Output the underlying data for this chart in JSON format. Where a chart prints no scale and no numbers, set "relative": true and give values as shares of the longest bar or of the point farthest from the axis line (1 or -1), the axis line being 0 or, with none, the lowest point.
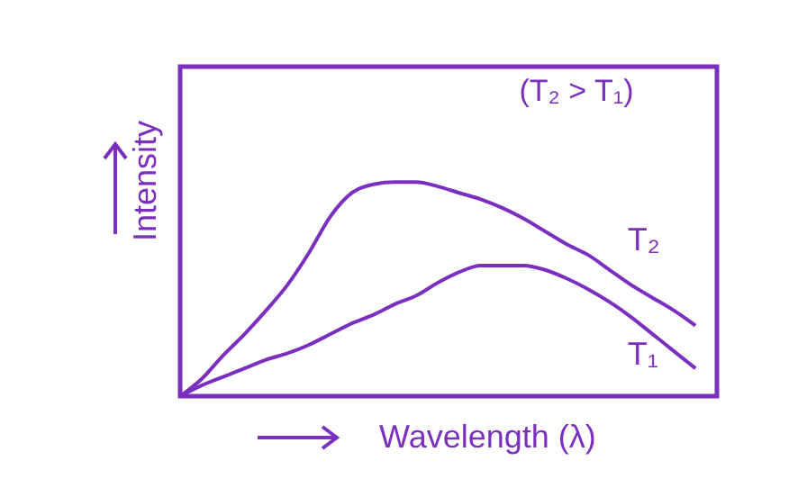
{
  "chart_data": {
    "type": "line",
    "xlabel": "Wavelength (λ)",
    "ylabel": "Intensity",
    "annotations": [
      "(T₂ > T₁)"
    ],
    "relative": true,
    "tick_labels": false,
    "categories": [
      null,
      null,
      null,
      null,
      null,
      null,
      null,
      null,
      null,
      null,
      null,
      null,
      null,
      null,
      null,
      null,
      null,
      null,
      null,
      null,
      null,
      null,
      null,
      null,
      null,
      null
    ],
    "series": [
      {
        "name": "T₂",
        "color": "#7b2fbf",
        "values": [
          0,
          0.08,
          0.19,
          0.29,
          0.4,
          0.52,
          0.67,
          0.84,
          0.95,
          0.99,
          1,
          1,
          0.98,
          0.95,
          0.92,
          0.88,
          0.83,
          0.77,
          0.71,
          0.66,
          0.59,
          0.52,
          0.46,
          0.4,
          0.33,
          null
        ]
      },
      {
        "name": "T₁",
        "color": "#7b2fbf",
        "values": [
          0,
          0.05,
          0.09,
          0.13,
          0.17,
          0.2,
          0.24,
          0.29,
          0.34,
          0.38,
          0.43,
          0.47,
          0.53,
          0.58,
          0.61,
          0.61,
          0.61,
          0.59,
          0.55,
          0.5,
          0.44,
          0.37,
          0.29,
          0.21,
          0.13,
          null
        ]
      }
    ]
  }
}
